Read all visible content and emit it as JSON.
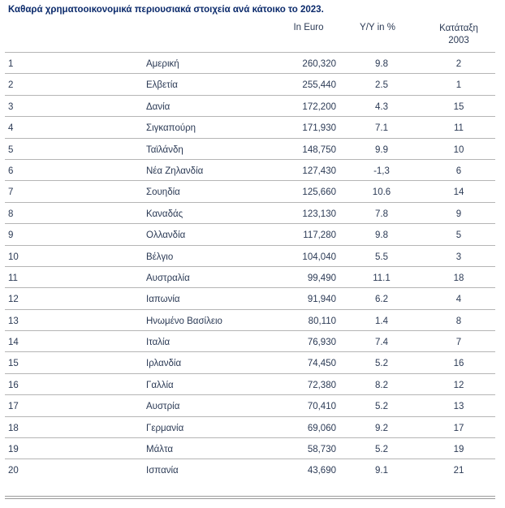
{
  "title": "Καθαρά χρηματοοικονομικά περιουσιακά στοιχεία ανά κάτοικο το 2023.",
  "columns": {
    "euro": "In Euro",
    "yy": "Y/Y in %",
    "rank_line1": "Κατάταξη",
    "rank_line2": "2003"
  },
  "rows": [
    {
      "rank": "1",
      "country": "Αμερική",
      "euro": "260,320",
      "yy": "9.8",
      "prev": "2"
    },
    {
      "rank": "2",
      "country": "Ελβετία",
      "euro": "255,440",
      "yy": "2.5",
      "prev": "1"
    },
    {
      "rank": "3",
      "country": "Δανία",
      "euro": "172,200",
      "yy": "4.3",
      "prev": "15"
    },
    {
      "rank": "4",
      "country": "Σιγκαπούρη",
      "euro": "171,930",
      "yy": "7.1",
      "prev": "11"
    },
    {
      "rank": "5",
      "country": "Ταϊλάνδη",
      "euro": "148,750",
      "yy": "9.9",
      "prev": "10"
    },
    {
      "rank": "6",
      "country": "Νέα Ζηλανδία",
      "euro": "127,430",
      "yy": "-1,3",
      "prev": "6"
    },
    {
      "rank": "7",
      "country": "Σουηδία",
      "euro": "125,660",
      "yy": "10.6",
      "prev": "14"
    },
    {
      "rank": "8",
      "country": "Καναδάς",
      "euro": "123,130",
      "yy": "7.8",
      "prev": "9"
    },
    {
      "rank": "9",
      "country": "Ολλανδία",
      "euro": "117,280",
      "yy": "9.8",
      "prev": "5"
    },
    {
      "rank": "10",
      "country": "Βέλγιο",
      "euro": "104,040",
      "yy": "5.5",
      "prev": "3"
    },
    {
      "rank": "11",
      "country": "Αυστραλία",
      "euro": "99,490",
      "yy": "11.1",
      "prev": "18"
    },
    {
      "rank": "12",
      "country": "Ιαπωνία",
      "euro": "91,940",
      "yy": "6.2",
      "prev": "4"
    },
    {
      "rank": "13",
      "country": "Ηνωμένο Βασίλειο",
      "euro": "80,110",
      "yy": "1.4",
      "prev": "8"
    },
    {
      "rank": "14",
      "country": "Ιταλία",
      "euro": "76,930",
      "yy": "7.4",
      "prev": "7"
    },
    {
      "rank": "15",
      "country": "Ιρλανδία",
      "euro": "74,450",
      "yy": "5.2",
      "prev": "16"
    },
    {
      "rank": "16",
      "country": "Γαλλία",
      "euro": "72,380",
      "yy": "8.2",
      "prev": "12"
    },
    {
      "rank": "17",
      "country": "Αυστρία",
      "euro": "70,410",
      "yy": "5.2",
      "prev": "13"
    },
    {
      "rank": "18",
      "country": "Γερμανία",
      "euro": "69,060",
      "yy": "9.2",
      "prev": "17"
    },
    {
      "rank": "19",
      "country": "Μάλτα",
      "euro": "58,730",
      "yy": "5.2",
      "prev": "19"
    },
    {
      "rank": "20",
      "country": "Ισπανία",
      "euro": "43,690",
      "yy": "9.1",
      "prev": "21"
    }
  ]
}
